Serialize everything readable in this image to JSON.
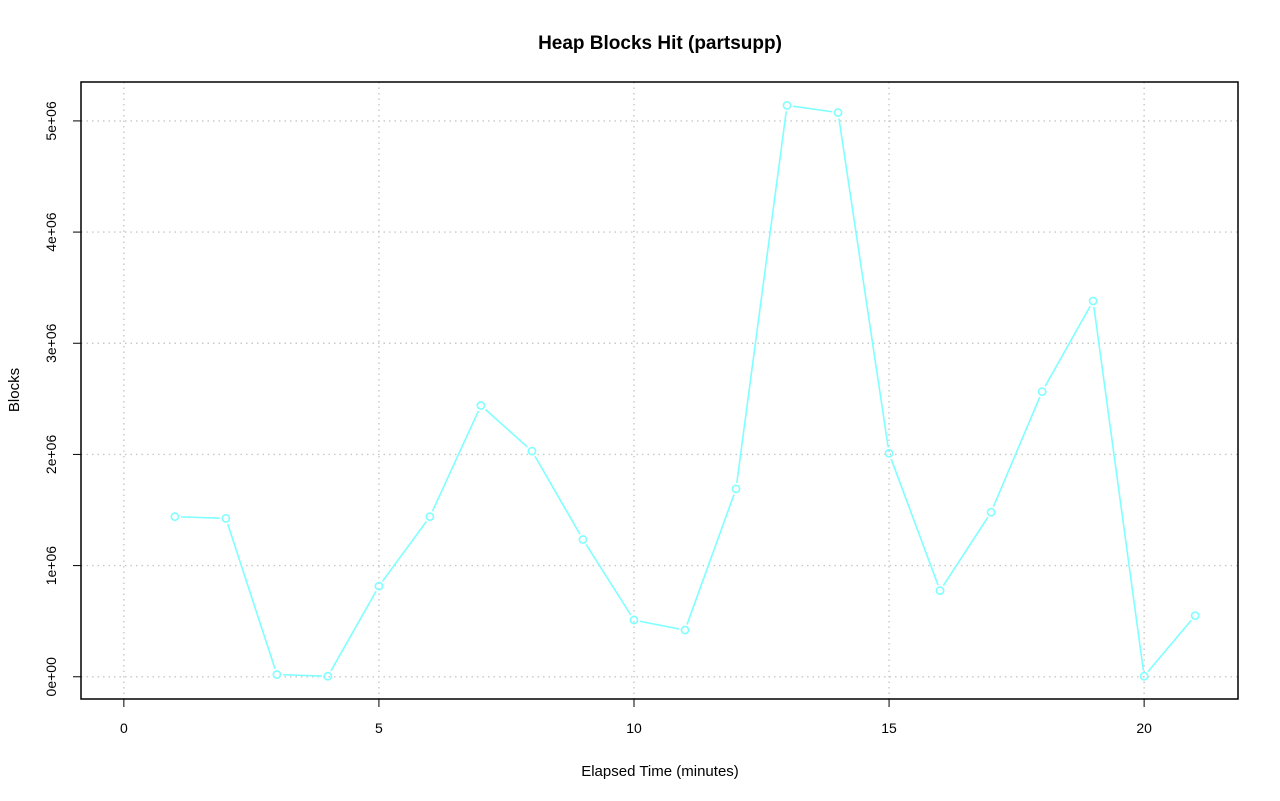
{
  "chart_data": {
    "type": "line",
    "title": "Heap Blocks Hit (partsupp)",
    "xlabel": "Elapsed Time (minutes)",
    "ylabel": "Blocks",
    "xlim": [
      -0.84,
      21.84
    ],
    "ylim": [
      -200000,
      5350000
    ],
    "x_ticks": [
      0,
      5,
      10,
      15,
      20
    ],
    "y_ticks": [
      0,
      1000000,
      2000000,
      3000000,
      4000000,
      5000000
    ],
    "y_tick_labels": [
      "0e+00",
      "1e+06",
      "2e+06",
      "3e+06",
      "4e+06",
      "5e+06"
    ],
    "grid": true,
    "legend": "none",
    "series": [
      {
        "color": "#7fffff",
        "marker": "open-circle",
        "x": [
          1,
          2,
          3,
          4,
          5,
          6,
          7,
          8,
          9,
          10,
          11,
          12,
          13,
          14,
          15,
          16,
          17,
          18,
          19,
          20,
          21
        ],
        "values": [
          1440000,
          1425000,
          20000,
          5000,
          815000,
          1440000,
          2440000,
          2030000,
          1235000,
          510000,
          420000,
          1690000,
          5140000,
          5075000,
          2010000,
          775000,
          1480000,
          2565000,
          3380000,
          5000,
          550000
        ]
      }
    ]
  }
}
